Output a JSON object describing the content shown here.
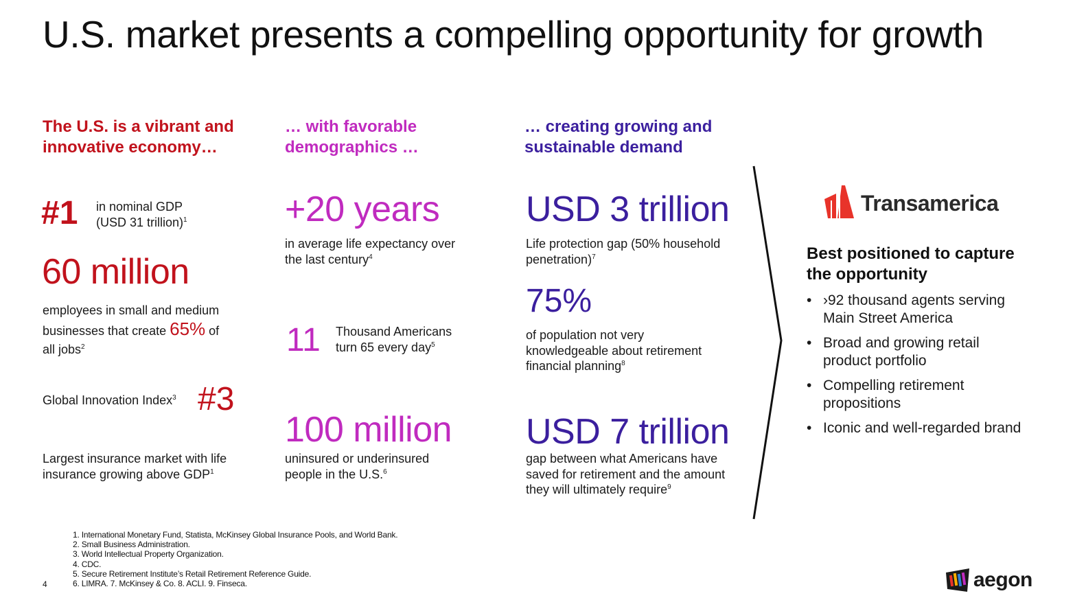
{
  "title": "U.S. market presents a compelling opportunity for growth",
  "col1": {
    "heading": [
      "The U.S. is a vibrant and",
      "innovative economy…"
    ],
    "gdp_rank": "#1",
    "gdp_text_1": "in nominal GDP",
    "gdp_text_2": "(USD 31 trillion)",
    "gdp_sup": "1",
    "employees_value": "60 million",
    "employees_text_1": "employees in small and medium",
    "employees_text_2a": "businesses that create ",
    "employees_pct": "65%",
    "employees_text_2b": " of",
    "employees_text_3": "all jobs",
    "employees_sup": "2",
    "gii_text": "Global Innovation Index",
    "gii_sup": "3",
    "gii_rank": "#3",
    "insurance_text_1": "Largest insurance market with life",
    "insurance_text_2": "insurance growing above GDP",
    "insurance_sup": "1"
  },
  "col2": {
    "heading": [
      "… with favorable",
      "demographics …"
    ],
    "years_value": "+20 years",
    "years_text_1": "in average life expectancy over",
    "years_text_2": "the last century",
    "years_sup": "4",
    "turn65_value": "11",
    "turn65_text_1": "Thousand Americans",
    "turn65_text_2": "turn 65 every day",
    "turn65_sup": "5",
    "uninsured_value": "100 million",
    "uninsured_text_1": "uninsured or underinsured",
    "uninsured_text_2": "people in the U.S.",
    "uninsured_sup": "6"
  },
  "col3": {
    "heading": [
      "… creating growing and",
      "sustainable demand"
    ],
    "gap_value": "USD 3 trillion",
    "gap_text_1": "Life protection gap (50% household",
    "gap_text_2": "penetration)",
    "gap_sup": "7",
    "pct_value": "75%",
    "pct_text_1": "of population not very",
    "pct_text_2": "knowledgeable about retirement",
    "pct_text_3": "financial planning",
    "pct_sup": "8",
    "retire_value": "USD 7 trillion",
    "retire_text_1": "gap between what Americans have",
    "retire_text_2": "saved for retirement and the amount",
    "retire_text_3": "they will ultimately require",
    "retire_sup": "9"
  },
  "right": {
    "brand": "Transamerica",
    "brand_icon": "transamerica-pyramid-logo",
    "heading": [
      "Best positioned to capture",
      "the opportunity"
    ],
    "bullets": [
      [
        "›92 thousand agents serving",
        "Main Street America"
      ],
      [
        "Broad and growing retail",
        "product portfolio"
      ],
      [
        "Compelling retirement",
        "propositions"
      ],
      [
        "Iconic and well-regarded brand",
        ""
      ]
    ]
  },
  "footnotes": [
    "1. International Monetary Fund, Statista, McKinsey Global Insurance Pools, and World Bank.",
    "2. Small Business Administration.",
    "3. World Intellectual Property Organization.",
    "4. CDC.",
    "5. Secure Retirement Institute’s Retail Retirement Reference Guide.",
    "6. LIMRA. 7. McKinsey & Co. 8. ACLI. 9. Finseca."
  ],
  "page_number": "4",
  "corp_logo": "aegon",
  "colors": {
    "red": "#c1121c",
    "magenta": "#c02bbf",
    "indigo": "#3b1f9e",
    "brand_red": "#e8332a"
  }
}
